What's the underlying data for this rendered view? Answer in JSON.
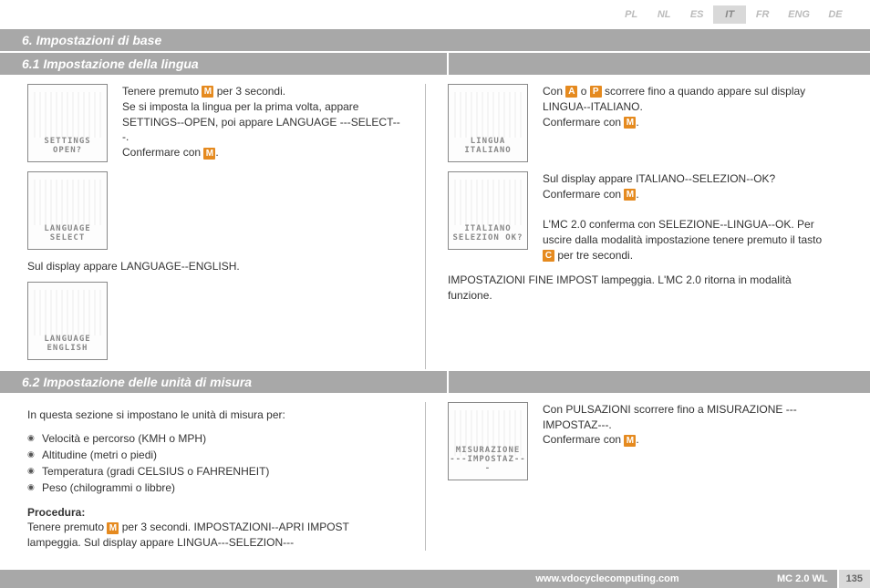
{
  "langs": [
    "PL",
    "NL",
    "ES",
    "IT",
    "FR",
    "ENG",
    "DE"
  ],
  "activeLang": "IT",
  "header6": "6.  Impostazioni di base",
  "header61": "6.1  Impostazione della lingua",
  "header62": "6.2  Impostazione delle unità di misura",
  "lcd": {
    "settings1": "SETTINGS",
    "settings2": "OPEN?",
    "lang1": "LANGUAGE",
    "lang2": "SELECT",
    "eng1": "LANGUAGE",
    "eng2": "ENGLISH",
    "lingua1": "LINGUA",
    "lingua2": "ITALIANO",
    "it1": "ITALIANO",
    "it2": "SELEZION OK?",
    "mis1": "MISURAZIONE",
    "mis2": "---IMPOSTAZ---"
  },
  "p": {
    "a1": "Tenere premuto ",
    "a2": " per 3 secondi.",
    "a3": "Se si imposta la lingua per la prima volta, appare SETTINGS--OPEN, poi appare LANGUAGE ---SELECT---.",
    "a4": "Confermare con ",
    "a5": ".",
    "b1": "Sul display appare LANGUAGE--ENGLISH.",
    "c1": "Con ",
    "c2": " o ",
    "c3": " scorrere fino a quando appare sul display LINGUA--ITALIANO.",
    "c4": "Confermare con ",
    "d1": "Sul display appare ITALIANO--SELEZION--OK?",
    "d2": "Confermare con ",
    "d3": "L'MC 2.0 conferma con SELEZIONE--LINGUA--OK. Per uscire dalla modalità impostazione tenere premuto il tasto ",
    "d4": " per tre secondi.",
    "e1": "IMPOSTAZIONI FINE IMPOST lampeggia. L'MC 2.0 ritorna in modalità funzione.",
    "f0": "In questa sezione si impostano le unità di misura per:",
    "li1": "Velocità e percorso (KMH o MPH)",
    "li2": "Altitudine (metri o piedi)",
    "li3": "Temperatura (gradi CELSIUS o FAHRENHEIT)",
    "li4": "Peso (chilogrammi o libbre)",
    "proc": "Procedura:",
    "g1": "Tenere premuto ",
    "g2": " per 3 secondi. IMPOSTAZIONI--APRI IMPOST lampeggia. Sul display appare LINGUA---SELEZION---",
    "h1": "Con PULSAZIONI scorrere fino a MISURAZIONE ---IMPOSTAZ---.",
    "h2": "Confermare con "
  },
  "footer": {
    "url": "www.vdocyclecomputing.com",
    "model": "MC 2.0 WL",
    "page": "135"
  },
  "keyM": "M",
  "keyA": "A",
  "keyP": "P",
  "keyC": "C"
}
